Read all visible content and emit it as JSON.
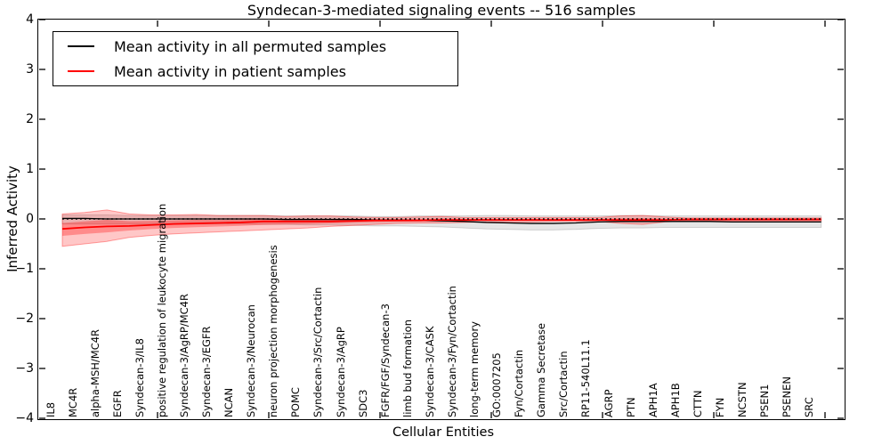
{
  "chart_data": {
    "type": "line",
    "title": "Syndecan-3-mediated signaling events -- 516 samples",
    "xlabel": "Cellular Entities",
    "ylabel": "Inferred Activity",
    "ylim": [
      -4,
      4
    ],
    "ytick_labels": [
      "4",
      "3",
      "2",
      "1",
      "0",
      "−1",
      "−2",
      "−3",
      "−4"
    ],
    "ytick_values": [
      4,
      3,
      2,
      1,
      0,
      -1,
      -2,
      -3,
      -4
    ],
    "grid": false,
    "legend_position": "upper left",
    "categories": [
      "IL8",
      "MC4R",
      "alpha-MSH/MC4R",
      "EGFR",
      "Syndecan-3/IL8",
      "positive regulation of leukocyte migration",
      "Syndecan-3/AgRP/MC4R",
      "Syndecan-3/EGFR",
      "NCAN",
      "Syndecan-3/Neurocan",
      "neuron projection morphogenesis",
      "POMC",
      "Syndecan-3/Src/Cortactin",
      "Syndecan-3/AgRP",
      "SDC3",
      "FGFR/FGF/Syndecan-3",
      "limb bud formation",
      "Syndecan-3/CASK",
      "Syndecan-3/Fyn/Cortactin",
      "long-term memory",
      "GO:0007205",
      "Fyn/Cortactin",
      "Gamma Secretase",
      "Src/Cortactin",
      "RP11-540L11.1",
      "AGRP",
      "PTN",
      "APH1A",
      "APH1B",
      "CTTN",
      "FYN",
      "NCSTN",
      "PSEN1",
      "PSENEN",
      "SRC"
    ],
    "series": [
      {
        "name": "Mean activity in all permuted samples",
        "color": "#000000",
        "style": "solid",
        "values": [
          0.01,
          0.01,
          0.0,
          0.0,
          0.0,
          0.0,
          0.0,
          0.0,
          0.0,
          0.0,
          -0.01,
          -0.01,
          -0.01,
          -0.01,
          -0.02,
          -0.02,
          -0.03,
          -0.04,
          -0.05,
          -0.07,
          -0.08,
          -0.09,
          -0.09,
          -0.08,
          -0.06,
          -0.05,
          -0.05,
          -0.05,
          -0.05,
          -0.05,
          -0.06,
          -0.06,
          -0.06,
          -0.06,
          -0.06
        ]
      },
      {
        "name": "Mean activity in patient samples",
        "color": "#ff0000",
        "style": "solid",
        "values": [
          -0.2,
          -0.17,
          -0.15,
          -0.14,
          -0.12,
          -0.1,
          -0.09,
          -0.08,
          -0.07,
          -0.05,
          -0.05,
          -0.05,
          -0.05,
          -0.04,
          -0.03,
          -0.03,
          -0.03,
          -0.02,
          -0.02,
          -0.02,
          -0.02,
          -0.02,
          -0.02,
          -0.02,
          -0.02,
          -0.02,
          -0.02,
          -0.02,
          -0.01,
          -0.01,
          -0.01,
          -0.01,
          -0.01,
          -0.01,
          -0.01
        ]
      }
    ],
    "bands": [
      {
        "name": "permuted-activity-range",
        "fill": "rgba(0,0,0,0.10)",
        "edge": "rgba(0,0,0,0.15)",
        "inner_scale": 0,
        "upper": [
          0.08,
          0.08,
          0.08,
          0.07,
          0.07,
          0.07,
          0.07,
          0.07,
          0.07,
          0.07,
          0.06,
          0.06,
          0.06,
          0.06,
          0.05,
          0.05,
          0.06,
          0.06,
          0.06,
          0.07,
          0.07,
          0.06,
          0.06,
          0.06,
          0.06,
          0.07,
          0.07,
          0.06,
          0.06,
          0.06,
          0.06,
          0.06,
          0.06,
          0.06,
          0.06
        ],
        "lower": [
          -0.1,
          -0.1,
          -0.1,
          -0.1,
          -0.1,
          -0.1,
          -0.1,
          -0.1,
          -0.1,
          -0.11,
          -0.11,
          -0.12,
          -0.12,
          -0.13,
          -0.14,
          -0.14,
          -0.15,
          -0.16,
          -0.18,
          -0.2,
          -0.21,
          -0.22,
          -0.22,
          -0.21,
          -0.19,
          -0.18,
          -0.18,
          -0.17,
          -0.17,
          -0.17,
          -0.17,
          -0.17,
          -0.17,
          -0.17,
          -0.17
        ]
      },
      {
        "name": "patient-activity-range",
        "fill": "rgba(255,0,0,0.22)",
        "edge": "rgba(255,0,0,0.35)",
        "inner_scale": 0.4,
        "inner_fill": "rgba(255,0,0,0.30)",
        "upper": [
          0.1,
          0.13,
          0.18,
          0.1,
          0.08,
          0.08,
          0.09,
          0.07,
          0.07,
          0.07,
          0.05,
          0.06,
          0.06,
          0.04,
          0.03,
          0.03,
          0.04,
          0.05,
          0.03,
          0.03,
          0.03,
          0.03,
          0.03,
          0.03,
          0.03,
          0.06,
          0.07,
          0.04,
          0.02,
          0.02,
          0.02,
          0.02,
          0.02,
          0.02,
          0.02
        ],
        "lower": [
          -0.55,
          -0.5,
          -0.45,
          -0.37,
          -0.33,
          -0.3,
          -0.28,
          -0.26,
          -0.24,
          -0.22,
          -0.2,
          -0.18,
          -0.15,
          -0.13,
          -0.11,
          -0.09,
          -0.08,
          -0.08,
          -0.07,
          -0.06,
          -0.06,
          -0.06,
          -0.05,
          -0.05,
          -0.05,
          -0.09,
          -0.11,
          -0.06,
          -0.04,
          -0.04,
          -0.04,
          -0.04,
          -0.04,
          -0.04,
          -0.04
        ]
      }
    ],
    "zero_line": {
      "value": 0,
      "style": "dotted",
      "color": "#000000"
    }
  }
}
